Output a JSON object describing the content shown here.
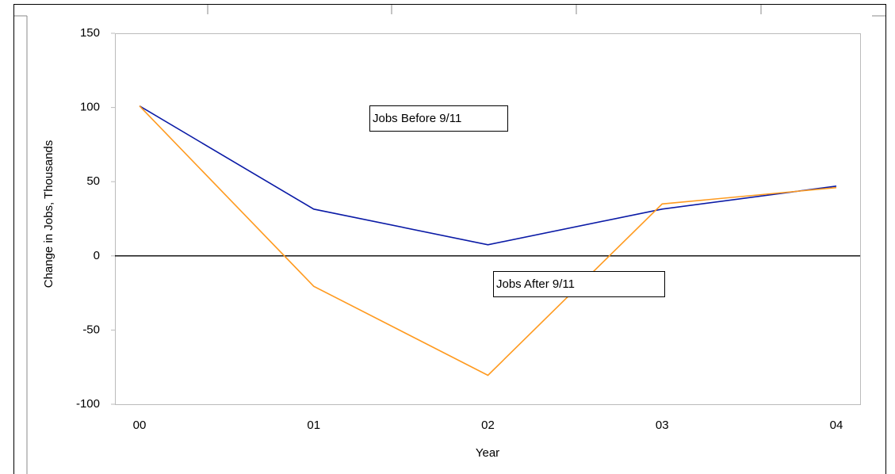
{
  "chart_data": {
    "type": "line",
    "x_label": "Year",
    "y_label": "Change in Jobs, Thousands",
    "categories": [
      "00",
      "01",
      "02",
      "03",
      "04"
    ],
    "series": [
      {
        "name": "Jobs Before 9/11",
        "color": "#0a1aa6",
        "values": [
          101,
          31.5,
          7.5,
          31.5,
          47
        ]
      },
      {
        "name": "Jobs After 9/11",
        "color": "#ff9a1f",
        "values": [
          101,
          -20.5,
          -80.5,
          35,
          46
        ]
      }
    ],
    "ylim": [
      -100,
      150
    ],
    "yticks": [
      -100,
      -50,
      0,
      50,
      100,
      150
    ],
    "grid": false,
    "zero_line": true
  }
}
